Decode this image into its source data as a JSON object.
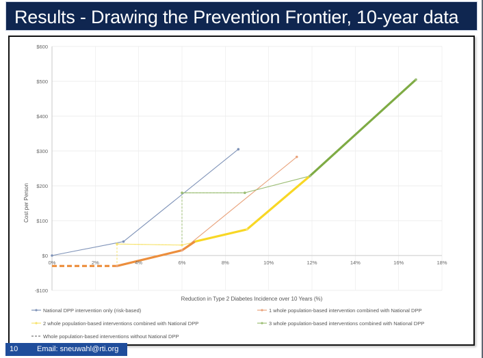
{
  "slide": {
    "title": "Results - Drawing the Prevention Frontier, 10-year data",
    "page_number": "10",
    "email": "Email: sneuwahl@rti.org"
  },
  "chart_data": {
    "type": "line",
    "xlabel": "Reduction in Type 2 Diabetes Incidence over 10 Years (%)",
    "ylabel": "Cost per Person",
    "xlim": [
      0,
      18
    ],
    "ylim": [
      -100,
      600
    ],
    "x_ticks": [
      0,
      2,
      4,
      6,
      8,
      10,
      12,
      14,
      16,
      18
    ],
    "x_tick_labels": [
      "0%",
      "2%",
      "4%",
      "6%",
      "8%",
      "10%",
      "12%",
      "14%",
      "16%",
      "18%"
    ],
    "y_ticks": [
      -100,
      0,
      100,
      200,
      300,
      400,
      500,
      600
    ],
    "y_tick_labels": [
      "-$100",
      "$0",
      "$100",
      "$200",
      "$300",
      "$400",
      "$500",
      "$600"
    ],
    "grid": true,
    "legend_position": "bottom",
    "series": [
      {
        "name": "National DPP intervention only (risk-based)",
        "color": "#7f93b8",
        "style": "solid",
        "x": [
          0,
          3.3,
          8.6
        ],
        "y": [
          0,
          40,
          305
        ]
      },
      {
        "name": "1 whole population-based intervention combined with National DPP",
        "color": "#e9a37c",
        "style": "solid",
        "x": [
          3.0,
          6.0,
          11.3
        ],
        "y": [
          -30,
          15,
          283
        ]
      },
      {
        "name": "2 whole population-based interventions combined with National DPP",
        "color": "#f7e36d",
        "style": "solid",
        "x": [
          3.0,
          6.0,
          9.0,
          11.9
        ],
        "y": [
          33,
          30,
          75,
          228
        ]
      },
      {
        "name": "3 whole population-based interventions combined with National DPP",
        "color": "#9bbd73",
        "style": "solid",
        "x": [
          6.0,
          8.9,
          11.9,
          16.8
        ],
        "y": [
          180,
          180,
          228,
          505
        ]
      },
      {
        "name": "Whole population-based interventions without National DPP",
        "color": "#777777",
        "style": "dashed",
        "x": [],
        "y": []
      }
    ],
    "frontier": {
      "orange_dashed": {
        "color": "#ec8e3c",
        "x": [
          0,
          3.0
        ],
        "y": [
          -30,
          -30
        ]
      },
      "orange_solid": {
        "color": "#ec8e3c",
        "x": [
          3.0,
          6.0,
          6.6
        ],
        "y": [
          -30,
          15,
          40
        ]
      },
      "yellow": {
        "color": "#f8d725",
        "x": [
          6.6,
          9.0,
          11.9
        ],
        "y": [
          40,
          75,
          228
        ]
      },
      "green": {
        "color": "#7eab44",
        "x": [
          11.9,
          16.8
        ],
        "y": [
          228,
          505
        ]
      }
    },
    "guide_lines": [
      {
        "color": "#9bbd73",
        "x": [
          6.0,
          8.9
        ],
        "y": [
          180,
          180
        ]
      },
      {
        "color": "#9bbd73",
        "x": [
          6.0,
          6.0
        ],
        "y": [
          180,
          30
        ]
      },
      {
        "color": "#f7e36d",
        "x": [
          3.0,
          6.0
        ],
        "y": [
          33,
          30
        ]
      },
      {
        "color": "#f7e36d",
        "x": [
          3.0,
          3.0
        ],
        "y": [
          33,
          -30
        ]
      }
    ]
  }
}
